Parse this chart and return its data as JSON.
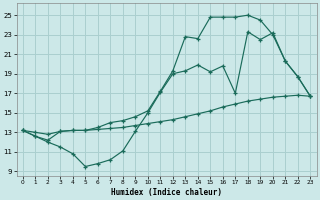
{
  "bg_color": "#cce8e8",
  "grid_color": "#aacfcf",
  "line_color": "#1a6b5a",
  "xlabel": "Humidex (Indice chaleur)",
  "xlim": [
    -0.5,
    23.5
  ],
  "ylim": [
    8.5,
    26.2
  ],
  "xticks": [
    0,
    1,
    2,
    3,
    4,
    5,
    6,
    7,
    8,
    9,
    10,
    11,
    12,
    13,
    14,
    15,
    16,
    17,
    18,
    19,
    20,
    21,
    22,
    23
  ],
  "yticks": [
    9,
    11,
    13,
    15,
    17,
    19,
    21,
    23,
    25
  ],
  "lineA_x": [
    0,
    1,
    2,
    3,
    4,
    5,
    6,
    7,
    8,
    9,
    10,
    11,
    12,
    13,
    14,
    15,
    16,
    17,
    18,
    19,
    20,
    21,
    22,
    23
  ],
  "lineA_y": [
    13.2,
    12.6,
    12.2,
    13.1,
    13.2,
    13.2,
    13.5,
    14.0,
    14.2,
    14.6,
    15.2,
    17.2,
    19.3,
    22.8,
    22.6,
    24.8,
    24.8,
    24.8,
    25.0,
    24.5,
    23.0,
    20.3,
    18.7,
    16.7
  ],
  "lineB_x": [
    0,
    1,
    2,
    3,
    4,
    5,
    6,
    7,
    8,
    9,
    10,
    11,
    12,
    13,
    14,
    15,
    16,
    17,
    18,
    19,
    20,
    21,
    22,
    23
  ],
  "lineB_y": [
    13.2,
    12.6,
    12.0,
    11.5,
    10.8,
    9.5,
    9.8,
    10.2,
    11.1,
    13.1,
    15.0,
    17.1,
    19.0,
    19.3,
    19.9,
    19.2,
    19.8,
    17.0,
    23.3,
    22.5,
    23.2,
    20.3,
    18.7,
    16.7
  ],
  "lineC_x": [
    0,
    1,
    2,
    3,
    4,
    5,
    6,
    7,
    8,
    9,
    10,
    11,
    12,
    13,
    14,
    15,
    16,
    17,
    18,
    19,
    20,
    21,
    22,
    23
  ],
  "lineC_y": [
    13.2,
    13.0,
    12.8,
    13.1,
    13.2,
    13.2,
    13.3,
    13.4,
    13.5,
    13.7,
    13.9,
    14.1,
    14.3,
    14.6,
    14.9,
    15.2,
    15.6,
    15.9,
    16.2,
    16.4,
    16.6,
    16.7,
    16.8,
    16.7
  ]
}
